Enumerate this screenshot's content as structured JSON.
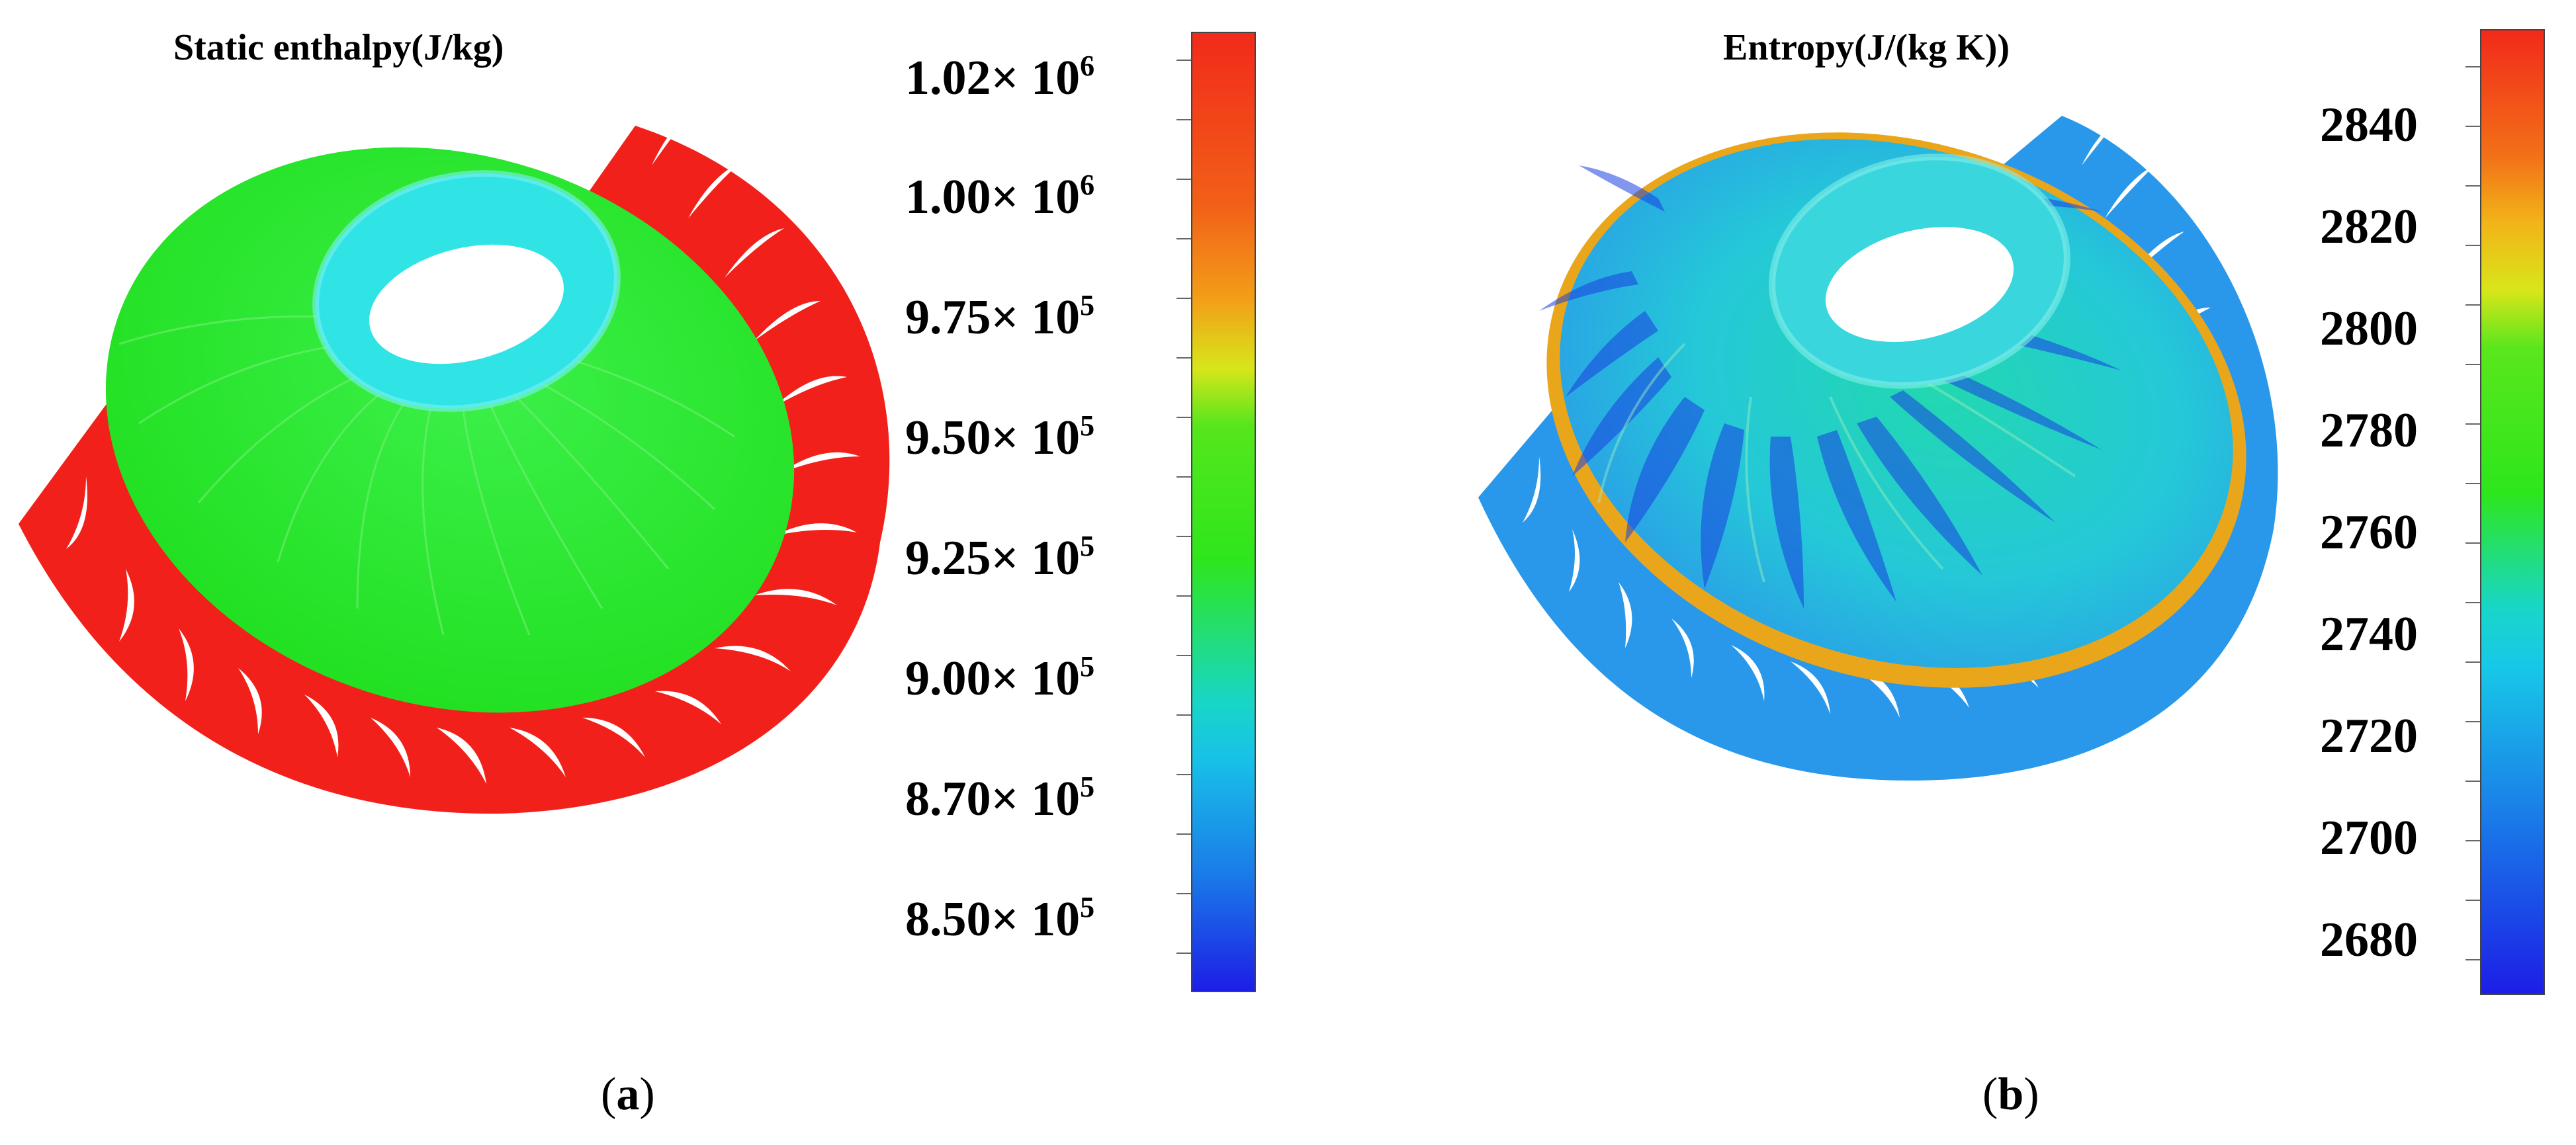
{
  "panels": [
    {
      "title": "Static enthalpy(J/kg)",
      "colorbar": {
        "ticks": [
          {
            "mant": "1.02",
            "exp": "6",
            "value": 1020000
          },
          {
            "mant": "1.00",
            "exp": "6",
            "value": 1000000
          },
          {
            "mant": "9.75",
            "exp": "5",
            "value": 975000
          },
          {
            "mant": "9.50",
            "exp": "5",
            "value": 950000
          },
          {
            "mant": "9.25",
            "exp": "5",
            "value": 925000
          },
          {
            "mant": "9.00",
            "exp": "5",
            "value": 900000
          },
          {
            "mant": "8.70",
            "exp": "5",
            "value": 870000
          },
          {
            "mant": "8.50",
            "exp": "5",
            "value": 850000
          }
        ]
      },
      "caption_letter": "a"
    },
    {
      "title": "Entropy(J/(kg K))",
      "colorbar": {
        "ticks": [
          "2840",
          "2820",
          "2800",
          "2780",
          "2760",
          "2740",
          "2720",
          "2700",
          "2680"
        ]
      },
      "caption_letter": "b"
    }
  ],
  "colorbar_stops": [
    "#1c1ee6",
    "#1a7ae8",
    "#18d6e8",
    "#1ce05a",
    "#2ee61c",
    "#d8e61a",
    "#f2a018",
    "#f22a1a"
  ],
  "colors": {
    "volute_a": "#f2201a",
    "runner_a": "#22e622",
    "hub": "#2ce6e6",
    "volute_b": "#2a98ea",
    "interface_b": "#eaa61a"
  }
}
